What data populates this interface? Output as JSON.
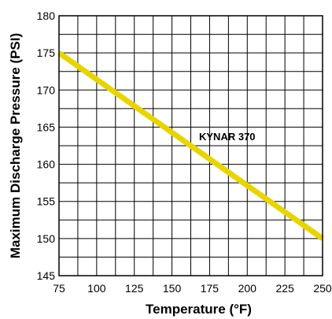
{
  "chart_data": {
    "type": "line",
    "title": "",
    "xlabel": "Temperature (°F)",
    "ylabel": "Maximum Discharge Pressure (PSI)",
    "xlim": [
      75,
      250
    ],
    "ylim": [
      145,
      180
    ],
    "x_ticks": [
      75,
      100,
      125,
      150,
      175,
      200,
      225,
      250
    ],
    "y_ticks": [
      145,
      150,
      155,
      160,
      165,
      170,
      175,
      180
    ],
    "grid": true,
    "series": [
      {
        "name": "KYNAR 370",
        "color": "#e8d400",
        "x": [
          75,
          250
        ],
        "y": [
          175,
          150
        ]
      }
    ]
  }
}
